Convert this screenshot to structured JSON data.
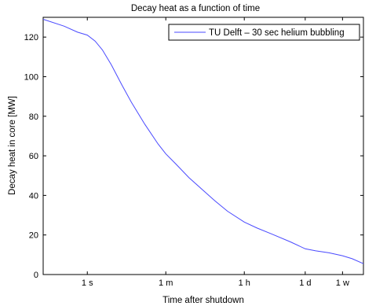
{
  "chart_data": {
    "type": "line",
    "title": "Decay heat as a function of time",
    "xlabel": "Time after shutdown",
    "ylabel": "Decay heat in core [MW]",
    "xscale": "log",
    "xunit": "seconds",
    "xlim": [
      0.1,
      1800000
    ],
    "ylim": [
      0,
      130
    ],
    "x_ticks": [
      {
        "value": 1,
        "label": "1 s"
      },
      {
        "value": 60,
        "label": "1 m"
      },
      {
        "value": 3600,
        "label": "1 h"
      },
      {
        "value": 86400,
        "label": "1 d"
      },
      {
        "value": 604800,
        "label": "1 w"
      }
    ],
    "y_ticks": [
      0,
      20,
      40,
      60,
      80,
      100,
      120
    ],
    "grid": false,
    "legend_position": "top-right",
    "series": [
      {
        "name": "TU Delft – 30 sec helium bubbling",
        "color": "#4a4aff",
        "x": [
          0.1,
          0.3,
          0.6,
          1.0,
          1.5,
          2.2,
          3.5,
          6,
          10,
          20,
          40,
          60,
          100,
          200,
          400,
          800,
          1500,
          3600,
          7000,
          15000,
          40000,
          86400,
          150000,
          300000,
          604800,
          1000000,
          1800000
        ],
        "y": [
          129,
          125.5,
          122.5,
          121,
          118,
          113.5,
          106,
          96,
          87,
          76,
          66,
          61,
          56,
          49,
          43,
          37,
          32,
          26.5,
          23.5,
          20.5,
          16.5,
          13,
          12,
          11,
          9.5,
          8,
          5.5
        ]
      }
    ]
  }
}
